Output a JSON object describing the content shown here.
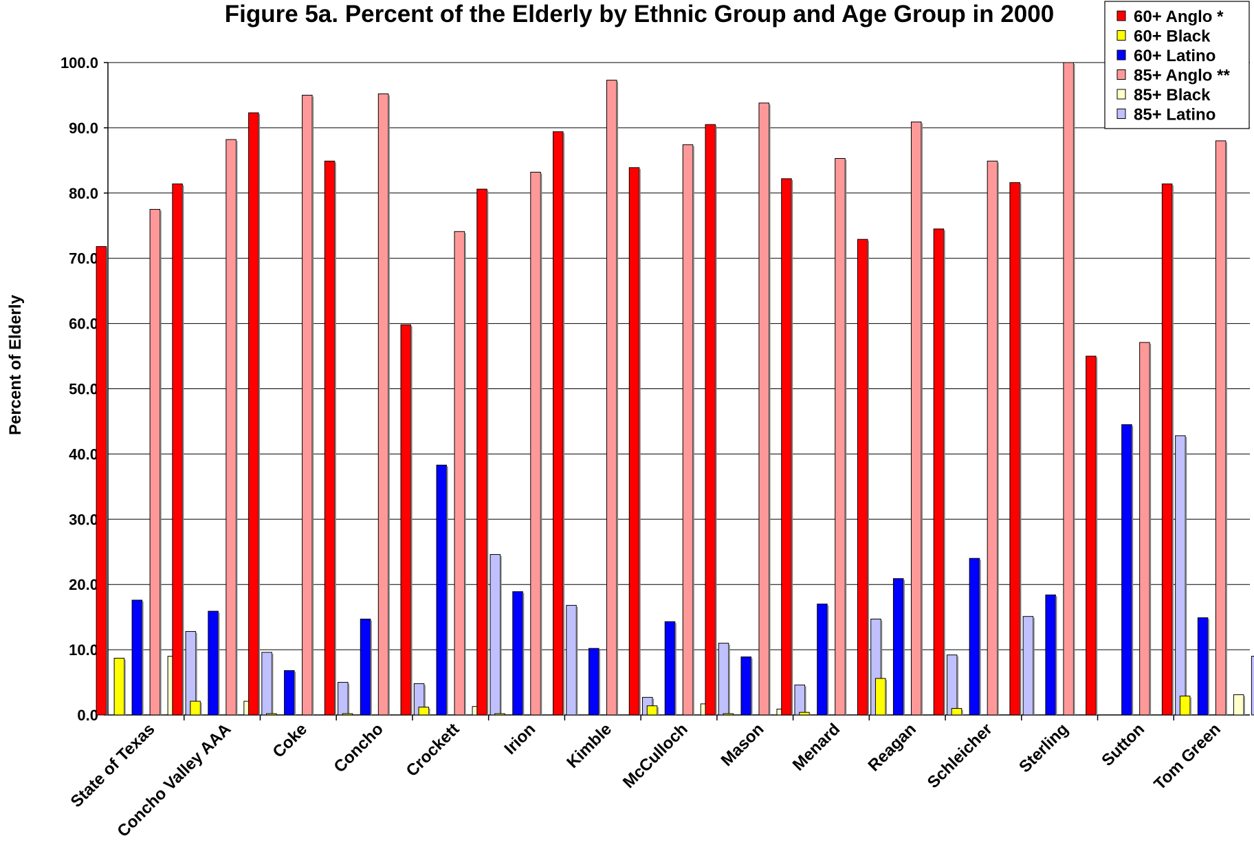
{
  "chart_data": {
    "type": "bar",
    "title": "Figure 5a.  Percent of the Elderly by Ethnic Group and Age Group in 2000",
    "xlabel": "",
    "ylabel": "Percent of Elderly",
    "ylim": [
      0,
      100
    ],
    "yticks": [
      "0.0",
      "10.0",
      "20.0",
      "30.0",
      "40.0",
      "50.0",
      "60.0",
      "70.0",
      "80.0",
      "90.0",
      "100.0"
    ],
    "grid": true,
    "legend_position": "top-right",
    "categories": [
      "State of Texas",
      "Concho Valley AAA",
      "Coke",
      "Concho",
      "Crockett",
      "Irion",
      "Kimble",
      "McCulloch",
      "Mason",
      "Menard",
      "Reagan",
      "Schleicher",
      "Sterling",
      "Sutton",
      "Tom Green"
    ],
    "series": [
      {
        "name": "60+ Anglo *",
        "color": "#ff0000",
        "values": [
          71.8,
          81.4,
          92.3,
          84.9,
          59.8,
          80.6,
          89.4,
          83.9,
          90.5,
          82.2,
          72.9,
          74.5,
          81.6,
          55.0,
          81.4
        ]
      },
      {
        "name": "60+ Black",
        "color": "#ffff00",
        "values": [
          8.7,
          2.1,
          0.2,
          0.2,
          1.2,
          0.2,
          0.0,
          1.4,
          0.2,
          0.4,
          5.6,
          1.0,
          0.0,
          0.0,
          2.9
        ]
      },
      {
        "name": "60+ Latino",
        "color": "#0000ff",
        "values": [
          17.6,
          15.9,
          6.8,
          14.7,
          38.3,
          18.9,
          10.2,
          14.3,
          8.9,
          17.0,
          20.9,
          24.0,
          18.4,
          44.5,
          14.9
        ]
      },
      {
        "name": "85+ Anglo **",
        "color": "#ff9999",
        "values": [
          77.5,
          88.2,
          95.0,
          95.2,
          74.1,
          83.2,
          97.3,
          87.4,
          93.8,
          85.3,
          90.9,
          84.9,
          100.0,
          57.1,
          88.0
        ]
      },
      {
        "name": "85+ Black",
        "color": "#ffffcc",
        "values": [
          9.0,
          2.1,
          0.0,
          0.0,
          1.3,
          0.0,
          0.0,
          1.7,
          0.9,
          0.0,
          0.0,
          0.0,
          0.0,
          0.0,
          3.1
        ]
      },
      {
        "name": "85+ Latino",
        "color": "#c0c0ff",
        "values": [
          12.8,
          9.6,
          5.0,
          4.8,
          24.6,
          16.8,
          2.7,
          11.0,
          4.6,
          14.7,
          9.2,
          15.1,
          0.0,
          42.8,
          9.0
        ]
      }
    ]
  }
}
